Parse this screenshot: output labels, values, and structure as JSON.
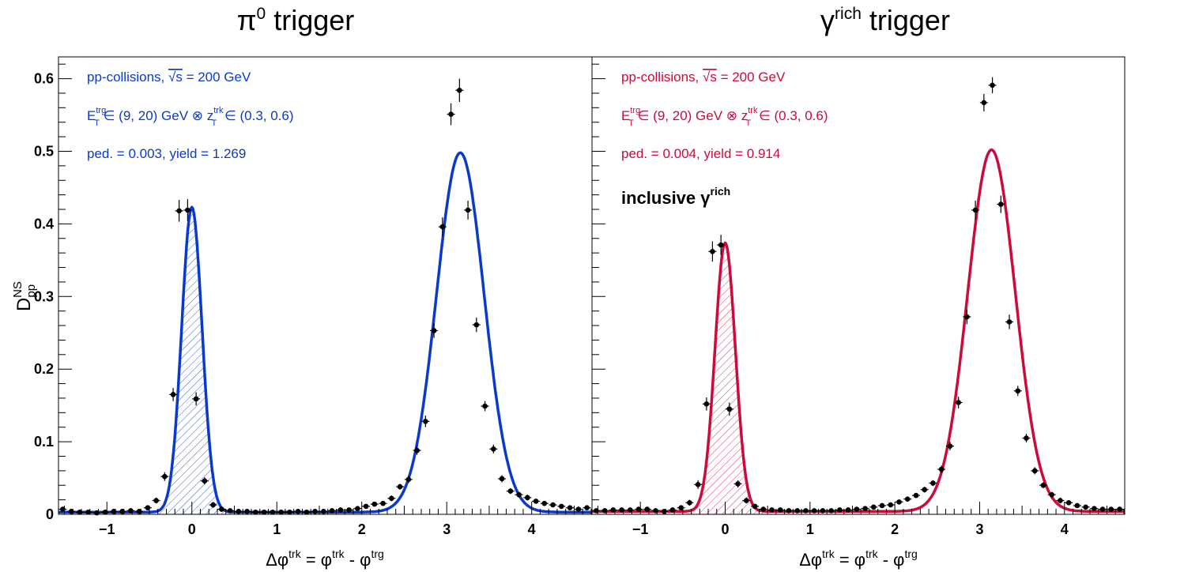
{
  "y_axis_label": {
    "base": "D",
    "sup": "NS",
    "sub": "pp"
  },
  "x_axis_label": {
    "delta": "Δφ",
    "trk": "trk",
    "eq": " = φ",
    "trk2": "trk",
    "minus": " - φ",
    "trg": "trg"
  },
  "x_ticks": [
    "−1",
    "0",
    "1",
    "2",
    "3",
    "4"
  ],
  "y_ticks": [
    "0",
    "0.1",
    "0.2",
    "0.3",
    "0.4",
    "0.5",
    "0.6"
  ],
  "panels": [
    {
      "title": {
        "symbol": "π",
        "sup": "0",
        "rest": " trigger"
      },
      "color": "#0a3acc",
      "labels": {
        "line1_pre": "pp-collisions, ",
        "sqrt": "√s",
        "line1_post": " = 200 GeV",
        "e": "E",
        "e_sup": "trg",
        "e_sub": "T",
        "range1": " ∈ (9, 20) GeV ⊗ z",
        "z_sup": "trk",
        "z_sub": "T",
        "range2": " ∈ (0.3, 0.6)",
        "line3": "ped. = 0.003, yield = 1.269"
      }
    },
    {
      "title": {
        "symbol": "γ",
        "sup": "rich",
        "rest": " trigger"
      },
      "color": "#cc0a3c",
      "labels": {
        "line1_pre": "pp-collisions, ",
        "sqrt": "√s",
        "line1_post": " = 200 GeV",
        "e": "E",
        "e_sup": "trg",
        "e_sub": "T",
        "range1": " ∈ (9, 20) GeV ⊗ z",
        "z_sup": "trk",
        "z_sub": "T",
        "range2": " ∈ (0.3, 0.6)",
        "line3": "ped. = 0.004, yield = 0.914",
        "inclusive": "inclusive γ",
        "inclusive_sup": "rich"
      }
    }
  ],
  "chart_data": [
    {
      "type": "scatter",
      "title": "π0 trigger",
      "xlabel": "Δφtrk = φtrk - φtrg",
      "ylabel": "DNSpp",
      "xlim": [
        -1.57,
        4.71
      ],
      "ylim": [
        0,
        0.63
      ],
      "x_ticks": [
        -1,
        0,
        1,
        2,
        3,
        4
      ],
      "y_ticks": [
        0,
        0.1,
        0.2,
        0.3,
        0.4,
        0.5,
        0.6
      ],
      "color": "#0a3acc",
      "shaded_near_side": [
        -0.45,
        0.45
      ],
      "fit_pedestal": 0.003,
      "fit_peaks": [
        {
          "mu": 0,
          "amp": 0.42,
          "sigma": 0.12
        },
        {
          "mu": 3.16,
          "amp": 0.495,
          "sigma": 0.28
        }
      ],
      "points": {
        "x": [
          -1.52,
          -1.42,
          -1.32,
          -1.22,
          -1.12,
          -1.02,
          -0.92,
          -0.82,
          -0.72,
          -0.62,
          -0.52,
          -0.42,
          -0.32,
          -0.22,
          -0.15,
          -0.05,
          0.05,
          0.15,
          0.25,
          0.35,
          0.45,
          0.55,
          0.65,
          0.75,
          0.85,
          0.95,
          1.05,
          1.15,
          1.25,
          1.35,
          1.45,
          1.55,
          1.65,
          1.75,
          1.85,
          1.95,
          2.05,
          2.15,
          2.25,
          2.35,
          2.45,
          2.55,
          2.65,
          2.75,
          2.85,
          2.95,
          3.05,
          3.15,
          3.25,
          3.35,
          3.45,
          3.55,
          3.65,
          3.75,
          3.85,
          3.95,
          4.05,
          4.15,
          4.25,
          4.35,
          4.45,
          4.55,
          4.65
        ],
        "y": [
          0.007,
          0.004,
          0.003,
          0.003,
          0.002,
          0.003,
          0.004,
          0.004,
          0.005,
          0.004,
          0.009,
          0.019,
          0.052,
          0.165,
          0.418,
          0.419,
          0.159,
          0.046,
          0.013,
          0.007,
          0.005,
          0.004,
          0.004,
          0.003,
          0.003,
          0.003,
          0.003,
          0.003,
          0.004,
          0.003,
          0.004,
          0.004,
          0.005,
          0.006,
          0.006,
          0.008,
          0.011,
          0.014,
          0.015,
          0.022,
          0.038,
          0.048,
          0.088,
          0.128,
          0.253,
          0.396,
          0.551,
          0.584,
          0.419,
          0.261,
          0.149,
          0.09,
          0.049,
          0.032,
          0.027,
          0.023,
          0.018,
          0.015,
          0.013,
          0.011,
          0.009,
          0.007,
          0.009
        ],
        "yerr": [
          0.003,
          0.003,
          0.003,
          0.003,
          0.003,
          0.003,
          0.003,
          0.003,
          0.003,
          0.003,
          0.003,
          0.004,
          0.006,
          0.009,
          0.015,
          0.015,
          0.009,
          0.005,
          0.004,
          0.003,
          0.003,
          0.003,
          0.003,
          0.003,
          0.003,
          0.003,
          0.003,
          0.003,
          0.003,
          0.003,
          0.003,
          0.003,
          0.003,
          0.003,
          0.003,
          0.003,
          0.003,
          0.003,
          0.003,
          0.004,
          0.004,
          0.005,
          0.006,
          0.008,
          0.01,
          0.013,
          0.015,
          0.016,
          0.013,
          0.01,
          0.007,
          0.006,
          0.005,
          0.004,
          0.004,
          0.004,
          0.003,
          0.003,
          0.003,
          0.003,
          0.003,
          0.003,
          0.003
        ]
      }
    },
    {
      "type": "scatter",
      "title": "γrich trigger",
      "xlabel": "Δφtrk = φtrk - φtrg",
      "ylabel": "",
      "xlim": [
        -1.57,
        4.71
      ],
      "ylim": [
        0,
        0.63
      ],
      "x_ticks": [
        -1,
        0,
        1,
        2,
        3,
        4
      ],
      "y_ticks": [
        0,
        0.1,
        0.2,
        0.3,
        0.4,
        0.5,
        0.6
      ],
      "color": "#cc0a3c",
      "shaded_near_side": [
        -0.45,
        0.45
      ],
      "fit_pedestal": 0.004,
      "fit_peaks": [
        {
          "mu": 0,
          "amp": 0.37,
          "sigma": 0.12
        },
        {
          "mu": 3.14,
          "amp": 0.498,
          "sigma": 0.28
        }
      ],
      "points": {
        "x": [
          -1.52,
          -1.42,
          -1.32,
          -1.22,
          -1.12,
          -1.02,
          -0.92,
          -0.82,
          -0.72,
          -0.62,
          -0.52,
          -0.42,
          -0.32,
          -0.22,
          -0.15,
          -0.05,
          0.05,
          0.15,
          0.25,
          0.35,
          0.45,
          0.55,
          0.65,
          0.75,
          0.85,
          0.95,
          1.05,
          1.15,
          1.25,
          1.35,
          1.45,
          1.55,
          1.65,
          1.75,
          1.85,
          1.95,
          2.05,
          2.15,
          2.25,
          2.35,
          2.45,
          2.55,
          2.65,
          2.75,
          2.85,
          2.95,
          3.05,
          3.15,
          3.25,
          3.35,
          3.45,
          3.55,
          3.65,
          3.75,
          3.85,
          3.95,
          4.05,
          4.15,
          4.25,
          4.35,
          4.45,
          4.55,
          4.65
        ],
        "y": [
          0.005,
          0.005,
          0.006,
          0.006,
          0.006,
          0.007,
          0.007,
          0.005,
          0.004,
          0.006,
          0.009,
          0.016,
          0.041,
          0.152,
          0.362,
          0.371,
          0.145,
          0.042,
          0.019,
          0.011,
          0.007,
          0.006,
          0.006,
          0.005,
          0.005,
          0.005,
          0.005,
          0.005,
          0.005,
          0.006,
          0.006,
          0.007,
          0.008,
          0.01,
          0.012,
          0.013,
          0.017,
          0.021,
          0.026,
          0.034,
          0.043,
          0.062,
          0.094,
          0.154,
          0.272,
          0.419,
          0.567,
          0.591,
          0.427,
          0.265,
          0.17,
          0.105,
          0.06,
          0.04,
          0.027,
          0.019,
          0.016,
          0.012,
          0.01,
          0.008,
          0.007,
          0.007,
          0.007
        ],
        "yerr": [
          0.003,
          0.003,
          0.003,
          0.003,
          0.003,
          0.003,
          0.003,
          0.003,
          0.003,
          0.003,
          0.003,
          0.004,
          0.006,
          0.009,
          0.014,
          0.014,
          0.009,
          0.005,
          0.004,
          0.003,
          0.003,
          0.003,
          0.003,
          0.003,
          0.003,
          0.003,
          0.003,
          0.003,
          0.003,
          0.003,
          0.003,
          0.003,
          0.003,
          0.003,
          0.003,
          0.003,
          0.003,
          0.003,
          0.003,
          0.004,
          0.004,
          0.005,
          0.006,
          0.008,
          0.01,
          0.013,
          0.012,
          0.011,
          0.012,
          0.01,
          0.007,
          0.006,
          0.005,
          0.004,
          0.004,
          0.004,
          0.003,
          0.003,
          0.003,
          0.003,
          0.003,
          0.003,
          0.003
        ]
      }
    }
  ]
}
